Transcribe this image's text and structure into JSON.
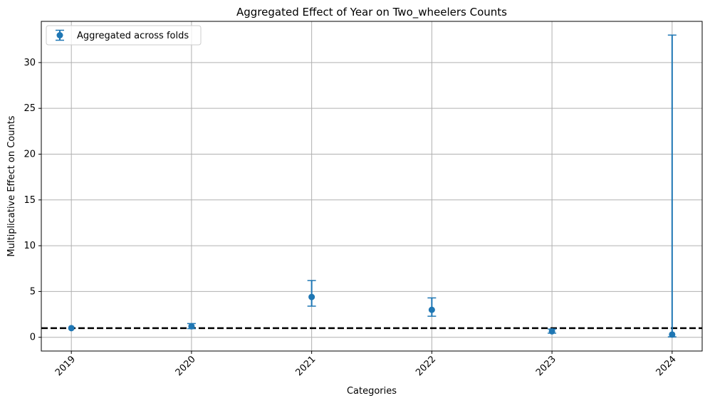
{
  "chart_data": {
    "type": "scatter",
    "title": "Aggregated Effect of Year on Two_wheelers Counts",
    "xlabel": "Categories",
    "ylabel": "Multiplicative Effect on Counts",
    "categories": [
      "2019",
      "2020",
      "2021",
      "2022",
      "2023",
      "2024"
    ],
    "series": [
      {
        "name": "Aggregated across folds",
        "color": "#1f77b4",
        "values": [
          1.0,
          1.2,
          4.4,
          3.0,
          0.65,
          0.3
        ],
        "err_low": [
          1.0,
          0.95,
          3.4,
          2.3,
          0.45,
          0.05
        ],
        "err_high": [
          1.0,
          1.5,
          6.2,
          4.3,
          0.9,
          33.0
        ]
      }
    ],
    "reference_line": {
      "y": 1,
      "style": "dashed",
      "color": "#000000"
    },
    "ylim": [
      -1.5,
      34.5
    ],
    "yticks": [
      0,
      5,
      10,
      15,
      20,
      25,
      30
    ],
    "grid": true,
    "legend_position": "top-left"
  }
}
